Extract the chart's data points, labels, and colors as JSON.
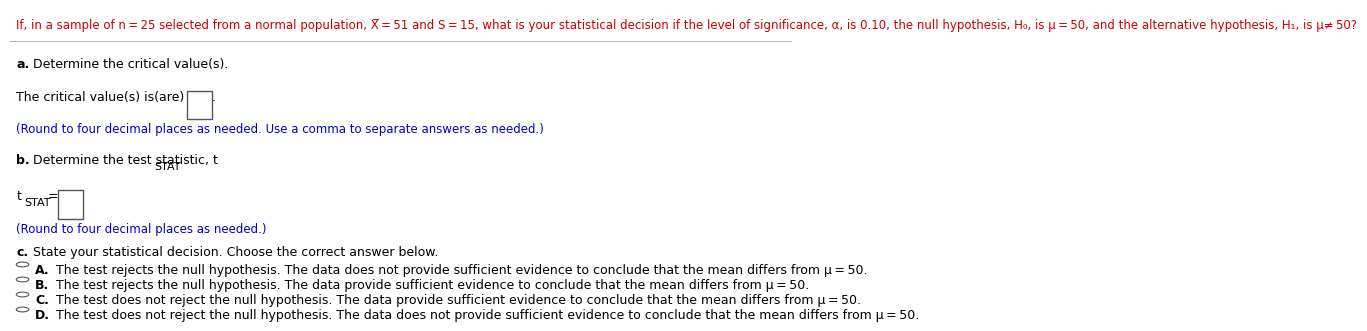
{
  "header": "If, in a sample of n = 25 selected from a normal population, X̅ = 51 and S = 15, what is your statistical decision if the level of significance, α, is 0.10, the null hypothesis, H₀, is μ = 50, and the alternative hypothesis, H₁, is μ≠ 50?",
  "part_a_label": "a.",
  "part_a_text": " Determine the critical value(s).",
  "part_a_line1": "The critical value(s) is(are)",
  "part_a_hint": "(Round to four decimal places as needed. Use a comma to separate answers as needed.)",
  "part_b_label": "b.",
  "part_b_text": " Determine the test statistic, t",
  "part_b_sub": "STAT",
  "part_b_sub2": ".",
  "tstat_label": "t",
  "tstat_sub": "STAT",
  "tstat_eq": " = ",
  "part_b_hint": "(Round to four decimal places as needed.)",
  "part_c_label": "c.",
  "part_c_text": " State your statistical decision. Choose the correct answer below.",
  "options": [
    {
      "letter": "A.",
      "text": "  The test rejects the null hypothesis. The data does not provide sufficient evidence to conclude that the mean differs from μ = 50."
    },
    {
      "letter": "B.",
      "text": "  The test rejects the null hypothesis. The data provide sufficient evidence to conclude that the mean differs from μ = 50."
    },
    {
      "letter": "C.",
      "text": "  The test does not reject the null hypothesis. The data provide sufficient evidence to conclude that the mean differs from μ = 50."
    },
    {
      "letter": "D.",
      "text": "  The test does not reject the null hypothesis. The data does not provide sufficient evidence to conclude that the mean differs from μ = 50."
    }
  ],
  "bg_color": "#ffffff",
  "text_color": "#000000",
  "blue_color": "#0000cc",
  "header_color": "#cc0000",
  "label_color": "#000000",
  "header_fontsize": 8.5,
  "body_fontsize": 9.0,
  "hint_fontsize": 8.5
}
